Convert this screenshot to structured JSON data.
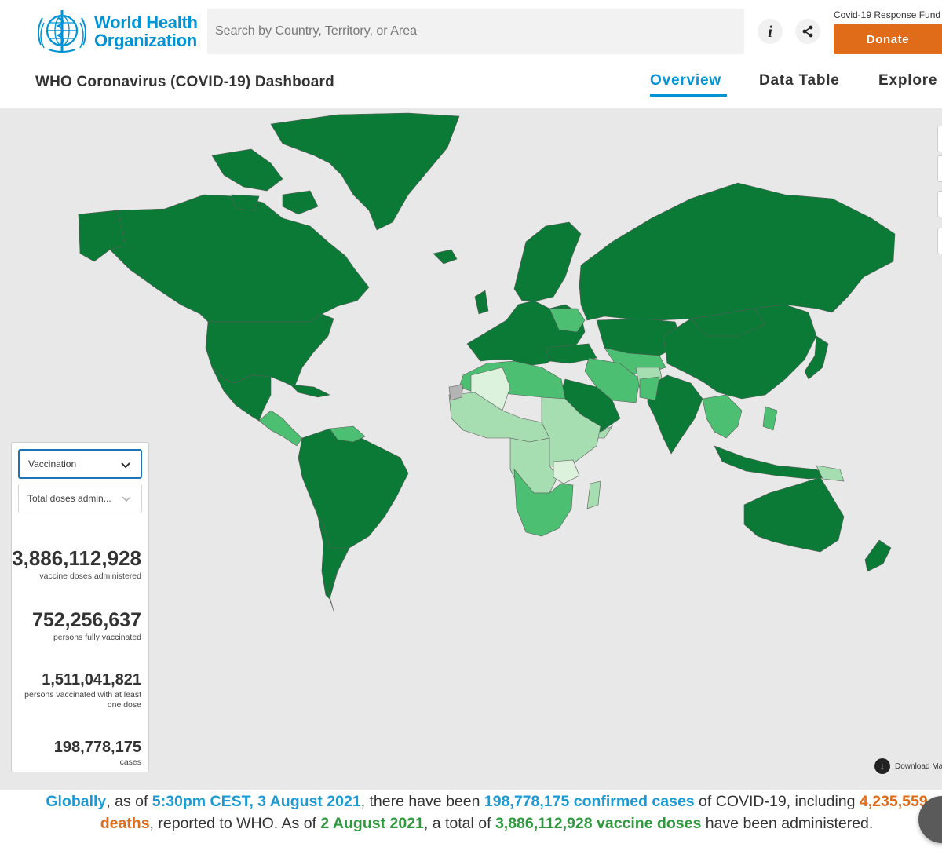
{
  "header": {
    "org_line1": "World Health",
    "org_line2": "Organization",
    "search_placeholder": "Search by Country, Territory, or Area",
    "fund_label": "Covid-19 Response Fund",
    "donate_label": "Donate",
    "info_icon": "info-icon",
    "share_icon": "share-icon"
  },
  "nav": {
    "title": "WHO Coronavirus (COVID-19) Dashboard",
    "tabs": [
      {
        "label": "Overview",
        "active": true
      },
      {
        "label": "Data Table",
        "active": false
      },
      {
        "label": "Explore",
        "active": false
      }
    ]
  },
  "panel": {
    "metric_select": "Vaccination",
    "submetric_select": "Total doses admin...",
    "stats": [
      {
        "value": "3,886,112,928",
        "label": "vaccine doses administered"
      },
      {
        "value": "752,256,637",
        "label": "persons fully vaccinated"
      },
      {
        "value": "1,511,041,821",
        "label": "persons vaccinated with at least one dose"
      },
      {
        "value": "198,778,175",
        "label": "cases"
      }
    ]
  },
  "map": {
    "download_label": "Download Ma",
    "colors": {
      "ocean": "#e8e8e8",
      "dark": "#0b7a37",
      "mid": "#4dbf72",
      "light": "#a6deb1",
      "pale": "#dcf2dd",
      "nodata": "#b4b4b4"
    }
  },
  "summary": {
    "s1": "Globally",
    "s2": ", as of ",
    "s3": "5:30pm CEST, 3 August 2021",
    "s4": ", there have been ",
    "s5": "198,778,175 confirmed cases",
    "s6": " of COVID-19, including ",
    "s7": "4,235,559 deaths",
    "s8": ", reported to WHO. As of ",
    "s9": "2 August 2021",
    "s10": ", a total of ",
    "s11": "3,886,112,928 vaccine doses",
    "s12": " have been administered."
  }
}
